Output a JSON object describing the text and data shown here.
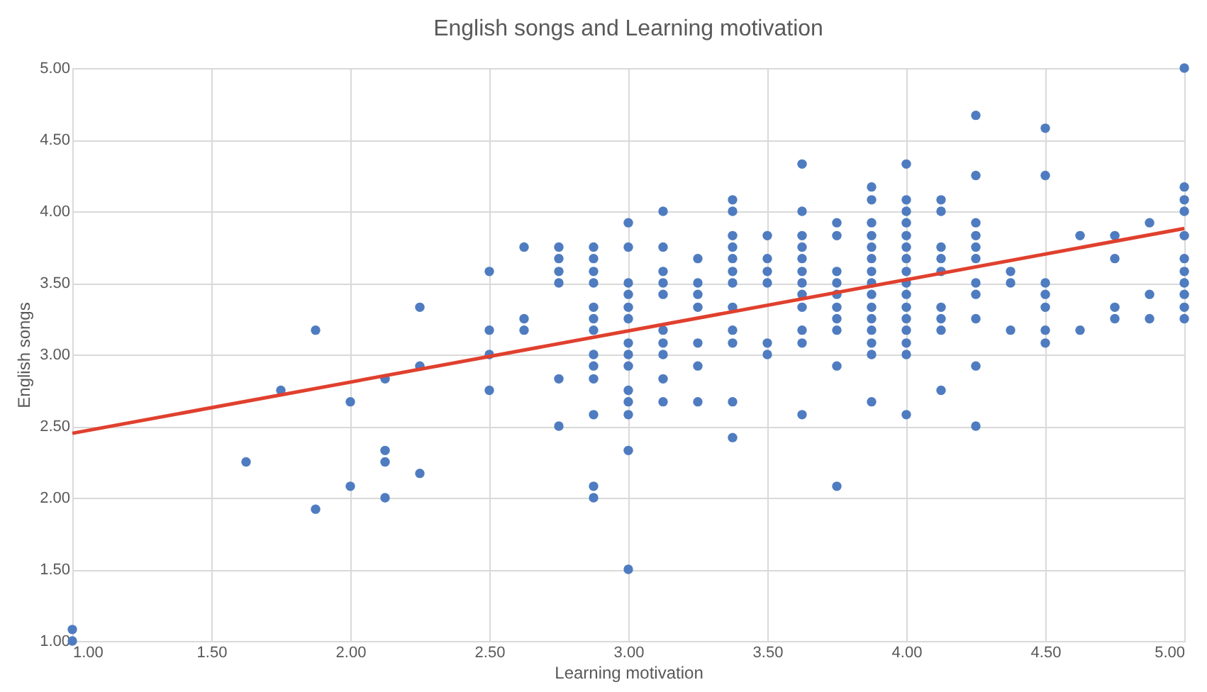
{
  "chart_data": {
    "type": "scatter",
    "title": "English songs and Learning motivation",
    "xlabel": "Learning motivation",
    "ylabel": "English songs",
    "xlim": [
      1,
      5
    ],
    "ylim": [
      1,
      5
    ],
    "xticks": [
      {
        "value": 1,
        "label": "1.00"
      },
      {
        "value": 1.5,
        "label": "1.50"
      },
      {
        "value": 2,
        "label": "2.00"
      },
      {
        "value": 2.5,
        "label": "2.50"
      },
      {
        "value": 3,
        "label": "3.00"
      },
      {
        "value": 3.5,
        "label": "3.50"
      },
      {
        "value": 4,
        "label": "4.00"
      },
      {
        "value": 4.5,
        "label": "4.50"
      },
      {
        "value": 5,
        "label": "5.00"
      }
    ],
    "yticks": [
      {
        "value": 1,
        "label": "1.00"
      },
      {
        "value": 1.5,
        "label": "1.50"
      },
      {
        "value": 2,
        "label": "2.00"
      },
      {
        "value": 2.5,
        "label": "2.50"
      },
      {
        "value": 3,
        "label": "3.00"
      },
      {
        "value": 3.5,
        "label": "3.50"
      },
      {
        "value": 4,
        "label": "4.00"
      },
      {
        "value": 4.5,
        "label": "4.50"
      },
      {
        "value": 5,
        "label": "5.00"
      }
    ],
    "grid": true,
    "marker": "circle",
    "series": [
      {
        "color": "#4f7cc0",
        "x": [
          1,
          1,
          1.625,
          1.75,
          1.875,
          1.875,
          2,
          2,
          2.125,
          2.125,
          2.125,
          2.125,
          2.25,
          2.25,
          2.25,
          2.5,
          2.5,
          2.5,
          2.5,
          2.625,
          2.625,
          2.625,
          2.75,
          2.75,
          2.75,
          2.75,
          2.75,
          2.75,
          2.875,
          2.875,
          2.875,
          2.875,
          2.875,
          2.875,
          2.875,
          2.875,
          2.875,
          2.875,
          2.875,
          2.875,
          2.875,
          3,
          3,
          3,
          3,
          3,
          3,
          3,
          3,
          3,
          3,
          3,
          3,
          3,
          3,
          3.125,
          3.125,
          3.125,
          3.125,
          3.125,
          3.125,
          3.125,
          3.125,
          3.125,
          3.125,
          3.25,
          3.25,
          3.25,
          3.25,
          3.25,
          3.25,
          3.25,
          3.375,
          3.375,
          3.375,
          3.375,
          3.375,
          3.375,
          3.375,
          3.375,
          3.375,
          3.375,
          3.375,
          3.375,
          3.5,
          3.5,
          3.5,
          3.5,
          3.5,
          3.5,
          3.625,
          3.625,
          3.625,
          3.625,
          3.625,
          3.625,
          3.625,
          3.625,
          3.625,
          3.625,
          3.625,
          3.625,
          3.75,
          3.75,
          3.75,
          3.75,
          3.75,
          3.75,
          3.75,
          3.75,
          3.75,
          3.75,
          3.875,
          3.875,
          3.875,
          3.875,
          3.875,
          3.875,
          3.875,
          3.875,
          3.875,
          3.875,
          3.875,
          3.875,
          3.875,
          3.875,
          3.875,
          4,
          4,
          4,
          4,
          4,
          4,
          4,
          4,
          4,
          4,
          4,
          4,
          4,
          4,
          4,
          4,
          4.125,
          4.125,
          4.125,
          4.125,
          4.125,
          4.125,
          4.125,
          4.125,
          4.125,
          4.25,
          4.25,
          4.25,
          4.25,
          4.25,
          4.25,
          4.25,
          4.25,
          4.25,
          4.25,
          4.25,
          4.375,
          4.375,
          4.375,
          4.5,
          4.5,
          4.5,
          4.5,
          4.5,
          4.5,
          4.5,
          4.625,
          4.625,
          4.75,
          4.75,
          4.75,
          4.75,
          4.875,
          4.875,
          4.875,
          5,
          5,
          5,
          5,
          5,
          5,
          5,
          5,
          5,
          5,
          5
        ],
        "values": [
          1.0,
          1.08,
          2.25,
          2.75,
          3.17,
          1.92,
          2.67,
          2.08,
          2.83,
          2.33,
          2.25,
          2.0,
          3.33,
          2.92,
          2.17,
          3.58,
          3.17,
          3.0,
          2.75,
          3.75,
          3.25,
          3.17,
          3.75,
          3.67,
          3.58,
          3.5,
          2.83,
          2.5,
          3.75,
          3.67,
          3.58,
          3.5,
          3.33,
          3.25,
          3.17,
          3.0,
          2.92,
          2.83,
          2.58,
          2.08,
          2.0,
          3.92,
          3.75,
          3.5,
          3.42,
          3.33,
          3.25,
          3.08,
          3.0,
          2.92,
          2.75,
          2.67,
          2.58,
          2.33,
          1.5,
          4.0,
          3.75,
          3.58,
          3.5,
          3.42,
          3.17,
          3.08,
          3.0,
          2.83,
          2.67,
          3.67,
          3.5,
          3.42,
          3.33,
          3.08,
          2.92,
          2.67,
          4.08,
          4.0,
          3.83,
          3.75,
          3.67,
          3.58,
          3.5,
          3.33,
          3.17,
          3.08,
          2.67,
          2.42,
          3.83,
          3.67,
          3.58,
          3.5,
          3.08,
          3.0,
          4.33,
          4.0,
          3.83,
          3.75,
          3.67,
          3.58,
          3.5,
          3.42,
          3.33,
          3.17,
          3.08,
          2.58,
          3.92,
          3.83,
          3.58,
          3.5,
          3.42,
          3.33,
          3.25,
          3.17,
          2.92,
          2.08,
          4.17,
          4.08,
          3.92,
          3.83,
          3.75,
          3.67,
          3.58,
          3.5,
          3.42,
          3.33,
          3.25,
          3.17,
          3.08,
          3.0,
          2.67,
          4.33,
          4.08,
          4.0,
          3.92,
          3.83,
          3.75,
          3.67,
          3.58,
          3.5,
          3.42,
          3.33,
          3.25,
          3.17,
          3.08,
          3.0,
          2.58,
          4.08,
          4.0,
          3.75,
          3.67,
          3.58,
          3.33,
          3.25,
          3.17,
          2.75,
          4.67,
          4.25,
          3.92,
          3.83,
          3.75,
          3.67,
          3.5,
          3.42,
          3.25,
          2.92,
          2.5,
          3.58,
          3.5,
          3.17,
          4.58,
          4.25,
          3.5,
          3.42,
          3.33,
          3.17,
          3.08,
          3.83,
          3.17,
          3.83,
          3.67,
          3.33,
          3.25,
          3.92,
          3.42,
          3.25,
          5.0,
          4.17,
          4.08,
          4.0,
          3.83,
          3.67,
          3.58,
          3.5,
          3.42,
          3.33,
          3.25
        ]
      },
      {
        "type": "line",
        "marker": "none",
        "color": "#e0402e",
        "x": [
          1,
          5
        ],
        "values": [
          2.45,
          3.88
        ]
      }
    ]
  }
}
